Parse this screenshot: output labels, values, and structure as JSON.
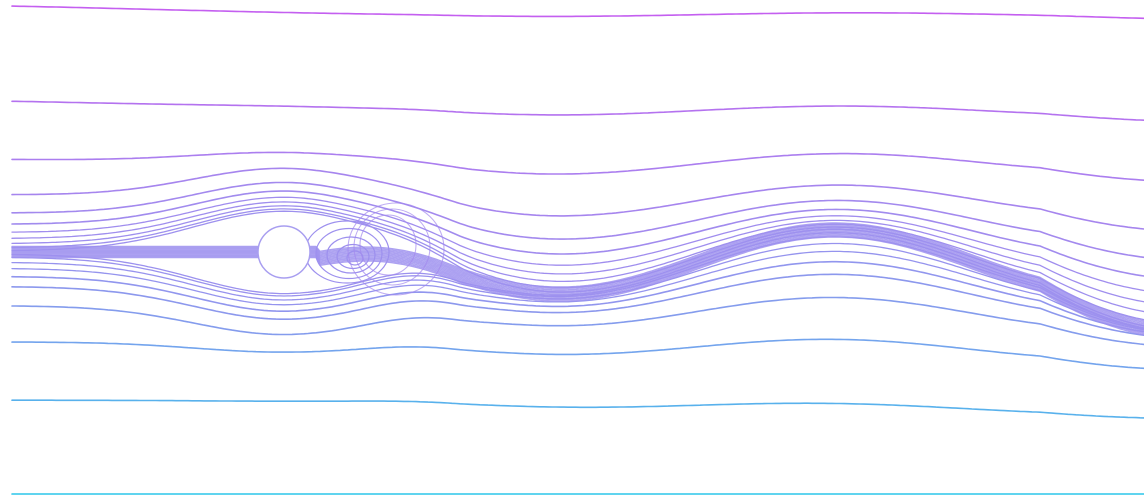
{
  "figure": {
    "kind": "streamlines-around-cylinder",
    "background_color": "#ffffff",
    "obstacle": {
      "shape": "circle",
      "fill": "#ffffff",
      "stroke": "#a89ef0"
    },
    "palette": {
      "top": "#c45ff0",
      "middle": "#9d90ee",
      "bottom": "#2cc6ea"
    },
    "features": {
      "recirculation_vortex": true,
      "oscillating_wake": true,
      "wake_periods_visible": 2
    }
  }
}
